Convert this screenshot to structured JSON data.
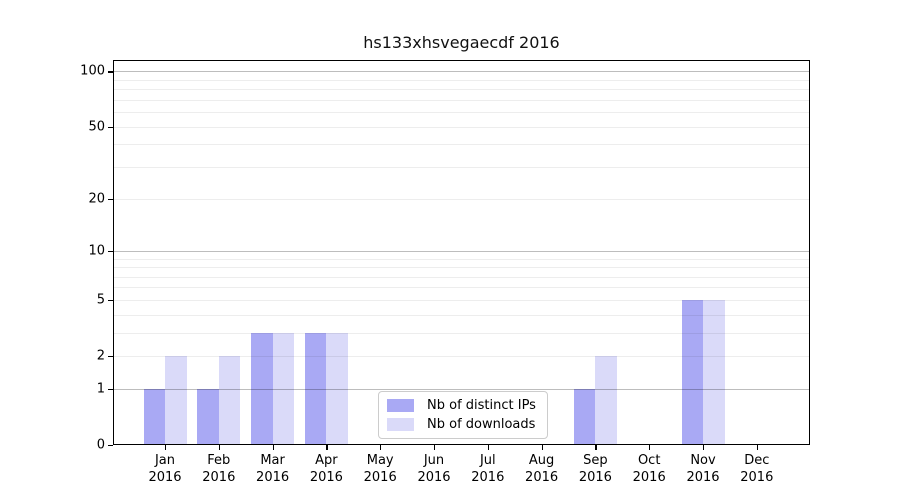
{
  "chart_data": {
    "type": "bar",
    "title": "hs133xhsvegaecdf 2016",
    "x_year": "2016",
    "categories": [
      "Jan",
      "Feb",
      "Mar",
      "Apr",
      "May",
      "Jun",
      "Jul",
      "Aug",
      "Sep",
      "Oct",
      "Nov",
      "Dec"
    ],
    "series": [
      {
        "name": "Nb of distinct IPs",
        "color": "#a9a9f4",
        "values": [
          1,
          1,
          3,
          3,
          0,
          0,
          0,
          0,
          1,
          0,
          5,
          0
        ]
      },
      {
        "name": "Nb of downloads",
        "color": "#dadaf9",
        "values": [
          2,
          2,
          3,
          3,
          0,
          0,
          0,
          0,
          2,
          0,
          5,
          0
        ]
      }
    ],
    "yscale": "log1p",
    "ylim": [
      0,
      100
    ],
    "ytick_labels": [
      0,
      1,
      2,
      5,
      10,
      20,
      50,
      100
    ],
    "major_gridlines": [
      1,
      10,
      100
    ],
    "minor_gridlines": [
      2,
      3,
      4,
      5,
      6,
      7,
      8,
      9,
      20,
      30,
      40,
      50,
      60,
      70,
      80,
      90
    ],
    "grid": "both",
    "legend_position": "lower center"
  },
  "colors": {
    "figure_bg": "#ffffff",
    "spine": "#000000",
    "major_grid": "rgba(0,0,0,0.26)",
    "minor_grid": "rgba(0,0,0,0.07)",
    "legend_border": "#cccccc",
    "text": "#000000"
  }
}
